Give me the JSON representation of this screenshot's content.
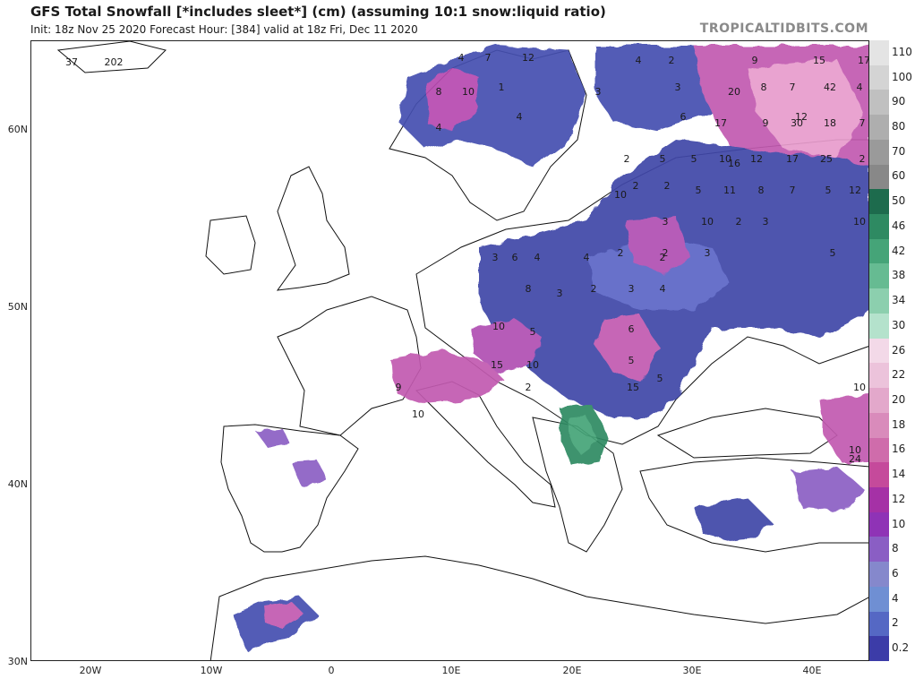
{
  "header": {
    "title": "GFS Total Snowfall [*includes sleet*] (cm) (assuming 10:1 snow:liquid ratio)",
    "subtitle": "Init: 18z Nov 25 2020   Forecast Hour: [384]   valid at 18z Fri, Dec 11 2020",
    "brand": "TROPICALTIDBITS.COM"
  },
  "axes": {
    "lat_labels": [
      "60N",
      "50N",
      "40N",
      "30N"
    ],
    "lon_labels": [
      "20W",
      "10W",
      "0",
      "10E",
      "20E",
      "30E",
      "40E"
    ]
  },
  "colorbar": {
    "labels": [
      "110",
      "100",
      "90",
      "80",
      "70",
      "60",
      "50",
      "46",
      "42",
      "38",
      "34",
      "30",
      "26",
      "22",
      "20",
      "18",
      "16",
      "14",
      "12",
      "10",
      "8",
      "6",
      "4",
      "2",
      "0.2"
    ],
    "colors": [
      "#e4e4e4",
      "#d4d4d4",
      "#c0c0c0",
      "#aeaeae",
      "#9a9a9a",
      "#888888",
      "#1d6b4d",
      "#2e8a62",
      "#45a478",
      "#66bb92",
      "#8ccfae",
      "#b4e2cc",
      "#f3d9e8",
      "#ecc3db",
      "#e3a8cb",
      "#d98bbb",
      "#cf6cab",
      "#c54a9b",
      "#a531a6",
      "#8f33b6",
      "#8a5ec4",
      "#8588cc",
      "#6f8fd3",
      "#5568c4",
      "#3c3ca8"
    ]
  },
  "map_labels": [
    "37",
    "202",
    "4",
    "7",
    "12",
    "8",
    "4",
    "10",
    "1",
    "4",
    "3",
    "4",
    "2",
    "3",
    "6",
    "20",
    "9",
    "8",
    "7",
    "15",
    "42",
    "12",
    "4",
    "17",
    "17",
    "16",
    "9",
    "30",
    "18",
    "7",
    "5",
    "2",
    "2",
    "5",
    "10",
    "12",
    "17",
    "25",
    "2",
    "2",
    "5",
    "11",
    "8",
    "7",
    "5",
    "12",
    "10",
    "3",
    "2",
    "2",
    "4",
    "6",
    "3",
    "4",
    "10",
    "3",
    "2",
    "3",
    "10",
    "5",
    "2",
    "3",
    "4",
    "8",
    "3",
    "2",
    "6",
    "10",
    "5",
    "15",
    "10",
    "5",
    "5",
    "2",
    "15",
    "9",
    "10",
    "10",
    "10",
    "24"
  ]
}
